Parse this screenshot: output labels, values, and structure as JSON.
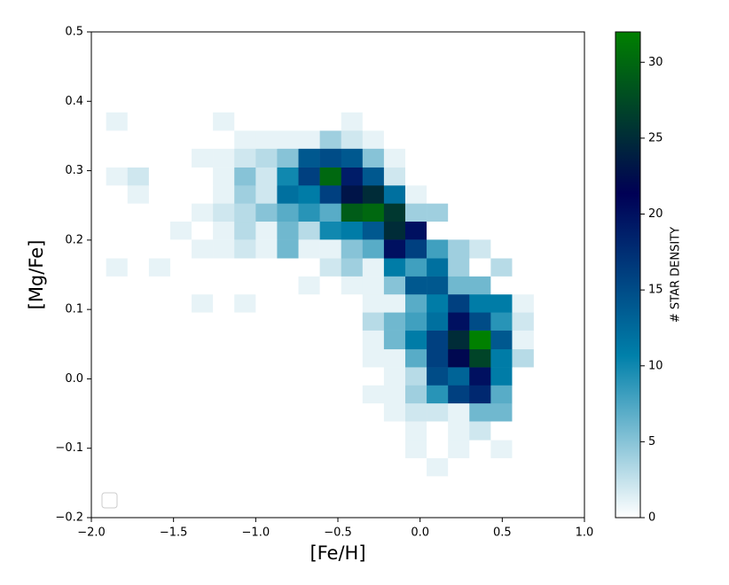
{
  "chart_data": {
    "type": "hist2d",
    "xlabel": "[Fe/H]",
    "ylabel": "[Mg/Fe]",
    "colorbar_label": "# STAR DENSITY",
    "xlim": [
      -2,
      1
    ],
    "ylim": [
      -0.2,
      0.5
    ],
    "xticks": [
      {
        "value": -2,
        "label": "−2.0"
      },
      {
        "value": -1.5,
        "label": "−1.5"
      },
      {
        "value": -1,
        "label": "−1.0"
      },
      {
        "value": -0.5,
        "label": "−0.5"
      },
      {
        "value": 0,
        "label": "0.0"
      },
      0.5,
      {
        "value": 1,
        "label": "1.0"
      }
    ],
    "yticks": [
      {
        "value": -0.2,
        "label": "−0.2"
      },
      {
        "value": -0.1,
        "label": "−0.1"
      },
      {
        "value": 0,
        "label": "0.0"
      },
      0.1,
      0.2,
      0.3,
      0.4,
      0.5
    ],
    "clim": [
      0,
      32
    ],
    "cticks": [
      0,
      5,
      10,
      15,
      20,
      25,
      30
    ],
    "colormap": [
      "#ffffff",
      "#0080aa",
      "#000055",
      "#008000"
    ],
    "x_bins": [
      -1.91,
      -1.78,
      -1.65,
      -1.52,
      -1.39,
      -1.26,
      -1.13,
      -1.0,
      -0.87,
      -0.74,
      -0.61,
      -0.48,
      -0.35,
      -0.22,
      -0.09,
      0.04,
      0.17,
      0.3,
      0.43,
      0.56,
      0.69
    ],
    "y_bins": [
      -0.14,
      -0.114,
      -0.088,
      -0.061,
      -0.035,
      -0.009,
      0.017,
      0.043,
      0.07,
      0.096,
      0.122,
      0.148,
      0.174,
      0.201,
      0.227,
      0.253,
      0.279,
      0.305,
      0.332,
      0.358,
      0.384
    ],
    "counts": [
      [
        0,
        0,
        0,
        0,
        0,
        0,
        0,
        0,
        0,
        0,
        0,
        0,
        0,
        0,
        0,
        1,
        0,
        0,
        0,
        0
      ],
      [
        0,
        0,
        0,
        0,
        0,
        0,
        0,
        0,
        0,
        0,
        0,
        0,
        0,
        0,
        1,
        0,
        1,
        0,
        1,
        0
      ],
      [
        0,
        0,
        0,
        0,
        0,
        0,
        0,
        0,
        0,
        0,
        0,
        0,
        0,
        0,
        1,
        0,
        1,
        2,
        0,
        0
      ],
      [
        0,
        0,
        0,
        0,
        0,
        0,
        0,
        0,
        0,
        0,
        0,
        0,
        0,
        1,
        2,
        2,
        1,
        6,
        6,
        0
      ],
      [
        0,
        0,
        0,
        0,
        0,
        0,
        0,
        0,
        0,
        0,
        0,
        0,
        1,
        1,
        4,
        9,
        16,
        18,
        7,
        0
      ],
      [
        0,
        0,
        0,
        0,
        0,
        0,
        0,
        0,
        0,
        0,
        0,
        0,
        0,
        1,
        3,
        15,
        13,
        20,
        11,
        0
      ],
      [
        0,
        0,
        0,
        0,
        0,
        0,
        0,
        0,
        0,
        0,
        0,
        0,
        1,
        1,
        7,
        16,
        22,
        27,
        11,
        3
      ],
      [
        0,
        0,
        0,
        0,
        0,
        0,
        0,
        0,
        0,
        0,
        0,
        0,
        1,
        6,
        11,
        16,
        25,
        32,
        14,
        1
      ],
      [
        0,
        0,
        0,
        0,
        0,
        0,
        0,
        0,
        0,
        0,
        0,
        0,
        3,
        6,
        8,
        12,
        20,
        15,
        9,
        2
      ],
      [
        0,
        0,
        0,
        0,
        1,
        0,
        1,
        0,
        0,
        0,
        0,
        0,
        1,
        1,
        7,
        11,
        16,
        11,
        11,
        1
      ],
      [
        0,
        0,
        0,
        0,
        0,
        0,
        0,
        0,
        0,
        1,
        0,
        1,
        1,
        5,
        14,
        14,
        6,
        6,
        0,
        0
      ],
      [
        1,
        0,
        1,
        0,
        0,
        0,
        0,
        0,
        0,
        0,
        2,
        4,
        1,
        11,
        8,
        12,
        4,
        0,
        3,
        0
      ],
      [
        0,
        0,
        0,
        0,
        1,
        1,
        2,
        1,
        6,
        1,
        1,
        5,
        7,
        20,
        16,
        8,
        4,
        2,
        0,
        0
      ],
      [
        0,
        0,
        0,
        1,
        0,
        1,
        3,
        1,
        6,
        3,
        10,
        11,
        14,
        25,
        20,
        0,
        0,
        0,
        0,
        0
      ],
      [
        0,
        0,
        0,
        0,
        1,
        2,
        3,
        5,
        7,
        9,
        7,
        29,
        30,
        26,
        4,
        4,
        0,
        0,
        0,
        0
      ],
      [
        0,
        1,
        0,
        0,
        0,
        1,
        4,
        2,
        12,
        11,
        16,
        23,
        25,
        12,
        1,
        0,
        0,
        0,
        0,
        0
      ],
      [
        1,
        2,
        0,
        0,
        0,
        1,
        5,
        2,
        10,
        16,
        30,
        19,
        14,
        2,
        0,
        0,
        0,
        0,
        0,
        0
      ],
      [
        0,
        0,
        0,
        0,
        1,
        1,
        2,
        3,
        5,
        14,
        15,
        14,
        5,
        1,
        0,
        0,
        0,
        0,
        0,
        0
      ],
      [
        0,
        0,
        0,
        0,
        0,
        0,
        1,
        1,
        1,
        1,
        4,
        2,
        1,
        0,
        0,
        0,
        0,
        0,
        0,
        0
      ],
      [
        1,
        0,
        0,
        0,
        0,
        1,
        0,
        0,
        0,
        0,
        0,
        1,
        0,
        0,
        0,
        0,
        0,
        0,
        0,
        0
      ]
    ]
  }
}
